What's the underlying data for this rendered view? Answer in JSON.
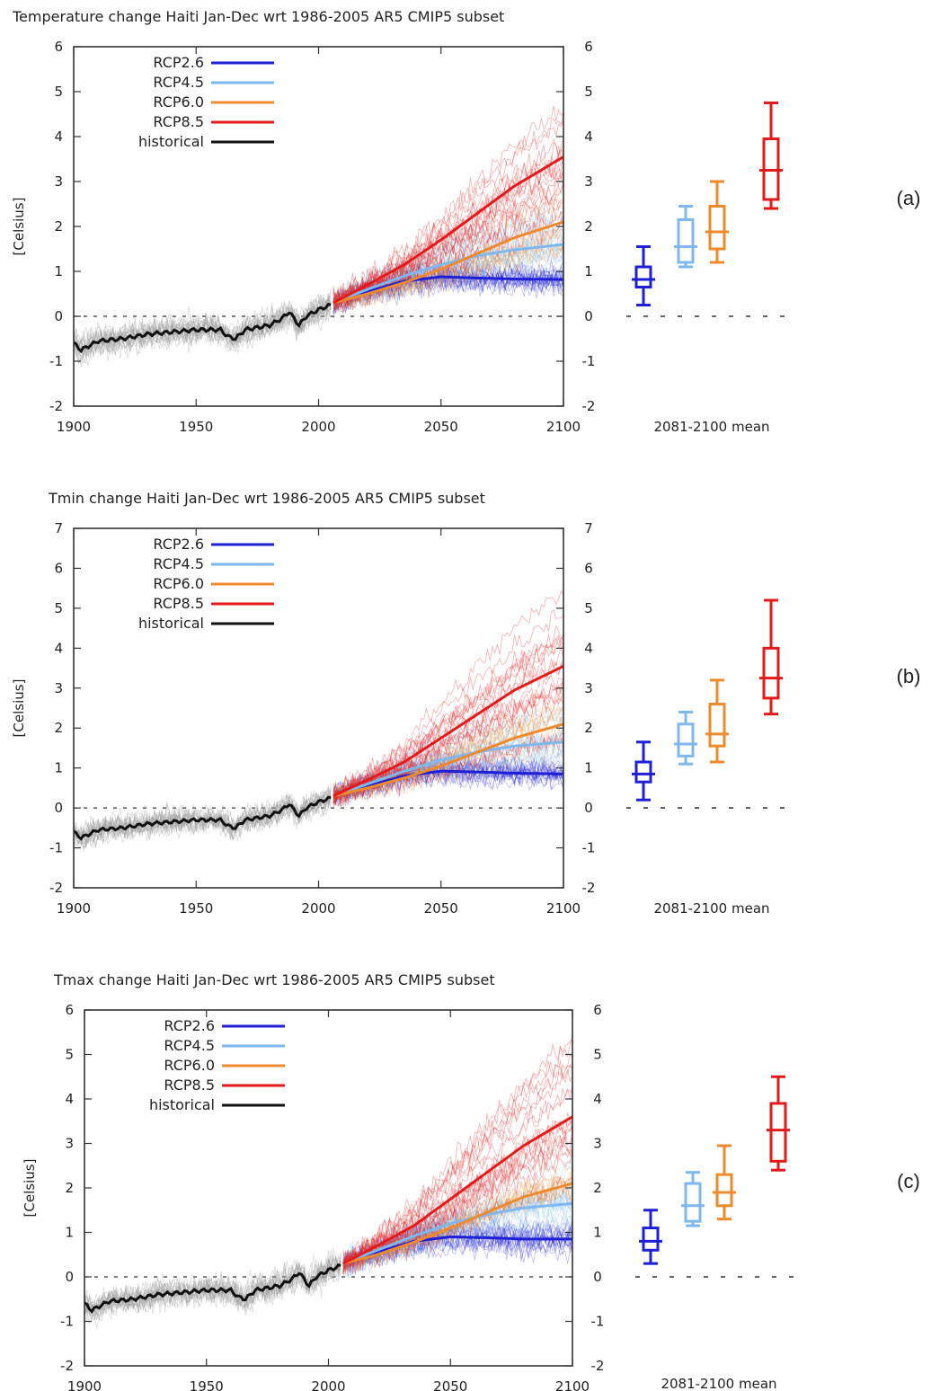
{
  "colors": {
    "rcp26": "#1f1fd6",
    "rcp45": "#7fb8ee",
    "rcp60": "#ee8a2c",
    "rcp85": "#e41a1a",
    "historical": "#111111"
  },
  "chart_data": [
    {
      "type": "line",
      "title": "Temperature change Haiti Jan-Dec wrt 1986-2005 AR5 CMIP5 subset",
      "ylabel": "[Celsius]",
      "xlim": [
        1900,
        2100
      ],
      "ylim": [
        -2,
        6
      ],
      "x_ticks": [
        "1900",
        "1950",
        "2000",
        "2050",
        "2100"
      ],
      "y_ticks": [
        "-2",
        "-1",
        "0",
        "1",
        "2",
        "3",
        "4",
        "5",
        "6"
      ],
      "series": [
        {
          "name": "RCP2.6",
          "color_key": "rcp26",
          "x": [
            2006,
            2020,
            2035,
            2050,
            2065,
            2080,
            2100
          ],
          "values": [
            0.3,
            0.55,
            0.78,
            0.88,
            0.85,
            0.83,
            0.82
          ]
        },
        {
          "name": "RCP4.5",
          "color_key": "rcp45",
          "x": [
            2006,
            2020,
            2035,
            2050,
            2065,
            2080,
            2100
          ],
          "values": [
            0.3,
            0.6,
            0.9,
            1.15,
            1.35,
            1.48,
            1.6
          ]
        },
        {
          "name": "RCP6.0",
          "color_key": "rcp60",
          "x": [
            2006,
            2020,
            2035,
            2050,
            2065,
            2080,
            2100
          ],
          "values": [
            0.3,
            0.5,
            0.75,
            1.05,
            1.4,
            1.75,
            2.1
          ]
        },
        {
          "name": "RCP8.5",
          "color_key": "rcp85",
          "x": [
            2006,
            2020,
            2035,
            2050,
            2065,
            2080,
            2100
          ],
          "values": [
            0.3,
            0.7,
            1.15,
            1.7,
            2.3,
            2.9,
            3.55
          ]
        },
        {
          "name": "historical",
          "color_key": "historical",
          "x": [
            1900,
            1903,
            1910,
            1920,
            1930,
            1940,
            1950,
            1960,
            1963,
            1966,
            1970,
            1980,
            1985,
            1988,
            1992,
            1995,
            2000,
            2005
          ],
          "values": [
            -0.6,
            -0.75,
            -0.55,
            -0.5,
            -0.4,
            -0.35,
            -0.3,
            -0.3,
            -0.45,
            -0.5,
            -0.3,
            -0.2,
            -0.05,
            0.1,
            -0.2,
            0.0,
            0.15,
            0.25
          ]
        }
      ],
      "boxplot_label": "2081-2100 mean",
      "boxplots": [
        {
          "series": "RCP2.6",
          "min": 0.25,
          "q1": 0.65,
          "median": 0.82,
          "q3": 1.1,
          "max": 1.55
        },
        {
          "series": "RCP4.5",
          "min": 1.1,
          "q1": 1.2,
          "median": 1.55,
          "q3": 2.15,
          "max": 2.45
        },
        {
          "series": "RCP6.0",
          "min": 1.2,
          "q1": 1.5,
          "median": 1.88,
          "q3": 2.45,
          "max": 3.0
        },
        {
          "series": "RCP8.5",
          "min": 2.4,
          "q1": 2.6,
          "median": 3.25,
          "q3": 3.95,
          "max": 4.75
        }
      ],
      "panel_label": "(a)"
    },
    {
      "type": "line",
      "title": "Tmin change Haiti Jan-Dec wrt 1986-2005 AR5 CMIP5 subset",
      "ylabel": "[Celsius]",
      "xlim": [
        1900,
        2100
      ],
      "ylim": [
        -2,
        7
      ],
      "x_ticks": [
        "1900",
        "1950",
        "2000",
        "2050",
        "2100"
      ],
      "y_ticks": [
        "-2",
        "-1",
        "0",
        "1",
        "2",
        "3",
        "4",
        "5",
        "6",
        "7"
      ],
      "series": [
        {
          "name": "RCP2.6",
          "color_key": "rcp26",
          "x": [
            2006,
            2020,
            2035,
            2050,
            2065,
            2080,
            2100
          ],
          "values": [
            0.3,
            0.55,
            0.8,
            0.92,
            0.9,
            0.87,
            0.85
          ]
        },
        {
          "name": "RCP4.5",
          "color_key": "rcp45",
          "x": [
            2006,
            2020,
            2035,
            2050,
            2065,
            2080,
            2100
          ],
          "values": [
            0.3,
            0.6,
            0.92,
            1.2,
            1.4,
            1.55,
            1.65
          ]
        },
        {
          "name": "RCP6.0",
          "color_key": "rcp60",
          "x": [
            2006,
            2020,
            2035,
            2050,
            2065,
            2080,
            2100
          ],
          "values": [
            0.3,
            0.5,
            0.75,
            1.05,
            1.4,
            1.75,
            2.1
          ]
        },
        {
          "name": "RCP8.5",
          "color_key": "rcp85",
          "x": [
            2006,
            2020,
            2035,
            2050,
            2065,
            2080,
            2100
          ],
          "values": [
            0.3,
            0.7,
            1.15,
            1.75,
            2.35,
            2.95,
            3.55
          ]
        },
        {
          "name": "historical",
          "color_key": "historical",
          "x": [
            1900,
            1903,
            1910,
            1920,
            1930,
            1940,
            1950,
            1960,
            1963,
            1966,
            1970,
            1980,
            1985,
            1988,
            1992,
            1995,
            2000,
            2005
          ],
          "values": [
            -0.6,
            -0.75,
            -0.55,
            -0.5,
            -0.4,
            -0.35,
            -0.3,
            -0.3,
            -0.45,
            -0.5,
            -0.3,
            -0.2,
            -0.05,
            0.1,
            -0.2,
            0.0,
            0.15,
            0.25
          ]
        }
      ],
      "boxplot_label": "2081-2100 mean",
      "boxplots": [
        {
          "series": "RCP2.6",
          "min": 0.2,
          "q1": 0.65,
          "median": 0.85,
          "q3": 1.15,
          "max": 1.65
        },
        {
          "series": "RCP4.5",
          "min": 1.1,
          "q1": 1.3,
          "median": 1.6,
          "q3": 2.1,
          "max": 2.4
        },
        {
          "series": "RCP6.0",
          "min": 1.15,
          "q1": 1.55,
          "median": 1.85,
          "q3": 2.6,
          "max": 3.2
        },
        {
          "series": "RCP8.5",
          "min": 2.35,
          "q1": 2.75,
          "median": 3.25,
          "q3": 4.0,
          "max": 5.2
        }
      ],
      "panel_label": "(b)"
    },
    {
      "type": "line",
      "title": "Tmax change Haiti Jan-Dec wrt 1986-2005 AR5 CMIP5 subset",
      "ylabel": "[Celsius]",
      "xlim": [
        1900,
        2100
      ],
      "ylim": [
        -2,
        6
      ],
      "x_ticks": [
        "1900",
        "1950",
        "2000",
        "2050",
        "2100"
      ],
      "y_ticks": [
        "-2",
        "-1",
        "0",
        "1",
        "2",
        "3",
        "4",
        "5",
        "6"
      ],
      "series": [
        {
          "name": "RCP2.6",
          "color_key": "rcp26",
          "x": [
            2006,
            2020,
            2035,
            2050,
            2065,
            2080,
            2100
          ],
          "values": [
            0.3,
            0.55,
            0.8,
            0.9,
            0.88,
            0.85,
            0.85
          ]
        },
        {
          "name": "RCP4.5",
          "color_key": "rcp45",
          "x": [
            2006,
            2020,
            2035,
            2050,
            2065,
            2080,
            2100
          ],
          "values": [
            0.3,
            0.6,
            0.92,
            1.2,
            1.4,
            1.55,
            1.65
          ]
        },
        {
          "name": "RCP6.0",
          "color_key": "rcp60",
          "x": [
            2006,
            2020,
            2035,
            2050,
            2065,
            2080,
            2100
          ],
          "values": [
            0.3,
            0.5,
            0.78,
            1.1,
            1.45,
            1.8,
            2.1
          ]
        },
        {
          "name": "RCP8.5",
          "color_key": "rcp85",
          "x": [
            2006,
            2020,
            2035,
            2050,
            2065,
            2080,
            2100
          ],
          "values": [
            0.3,
            0.7,
            1.15,
            1.75,
            2.35,
            2.95,
            3.6
          ]
        },
        {
          "name": "historical",
          "color_key": "historical",
          "x": [
            1900,
            1903,
            1910,
            1920,
            1930,
            1940,
            1950,
            1960,
            1963,
            1966,
            1970,
            1980,
            1985,
            1988,
            1992,
            1995,
            2000,
            2005
          ],
          "values": [
            -0.6,
            -0.75,
            -0.55,
            -0.5,
            -0.4,
            -0.35,
            -0.3,
            -0.3,
            -0.45,
            -0.5,
            -0.3,
            -0.2,
            -0.05,
            0.1,
            -0.2,
            0.0,
            0.15,
            0.25
          ]
        }
      ],
      "boxplot_label": "2081-2100 mean",
      "boxplots": [
        {
          "series": "RCP2.6",
          "min": 0.3,
          "q1": 0.6,
          "median": 0.8,
          "q3": 1.1,
          "max": 1.5
        },
        {
          "series": "RCP4.5",
          "min": 1.15,
          "q1": 1.25,
          "median": 1.6,
          "q3": 2.1,
          "max": 2.35
        },
        {
          "series": "RCP6.0",
          "min": 1.3,
          "q1": 1.6,
          "median": 1.9,
          "q3": 2.3,
          "max": 2.95
        },
        {
          "series": "RCP8.5",
          "min": 2.4,
          "q1": 2.6,
          "median": 3.3,
          "q3": 3.9,
          "max": 4.5
        }
      ],
      "panel_label": "(c)"
    }
  ]
}
